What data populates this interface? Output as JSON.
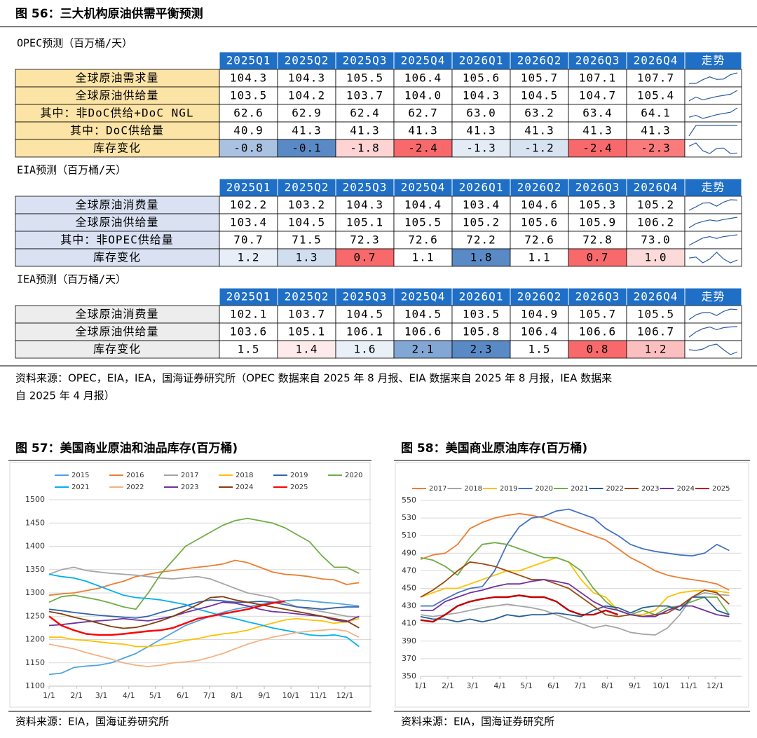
{
  "table": {
    "title": "图 56：三大机构原油供需平衡预测",
    "header_color": "#1f6fc6",
    "trend_color": "#2e5c9e",
    "sections": [
      {
        "title": "OPEC预测（百万桶/天）",
        "label_color": "#fce4a6",
        "columns": [
          "2025Q1",
          "2025Q2",
          "2025Q3",
          "2025Q4",
          "2026Q1",
          "2026Q2",
          "2026Q3",
          "2026Q4",
          "走势"
        ],
        "rows": [
          {
            "label": "全球原油需求量",
            "values": [
              "104.3",
              "104.3",
              "105.5",
              "106.4",
              "105.6",
              "105.7",
              "107.1",
              "107.7"
            ]
          },
          {
            "label": "全球原油供给量",
            "values": [
              "103.5",
              "104.2",
              "103.7",
              "104.0",
              "104.3",
              "104.5",
              "104.7",
              "105.4"
            ]
          },
          {
            "label": "其中：非DoC供给+DoC NGL",
            "values": [
              "62.6",
              "62.9",
              "62.4",
              "62.7",
              "63.0",
              "63.2",
              "63.4",
              "64.1"
            ]
          },
          {
            "label": "其中：DoC供给量",
            "values": [
              "40.9",
              "41.3",
              "41.3",
              "41.3",
              "41.3",
              "41.3",
              "41.3",
              "41.3"
            ]
          },
          {
            "label": "库存变化",
            "values": [
              "-0.8",
              "-0.1",
              "-1.8",
              "-2.4",
              "-1.3",
              "-1.2",
              "-2.4",
              "-2.3"
            ]
          }
        ]
      },
      {
        "title": "EIA预测（百万桶/天）",
        "label_color": "#d9e1f2",
        "columns": [
          "2025Q1",
          "2025Q2",
          "2025Q3",
          "2025Q4",
          "2026Q1",
          "2026Q2",
          "2026Q3",
          "2026Q4",
          "走势"
        ],
        "rows": [
          {
            "label": "全球原油消费量",
            "values": [
              "102.2",
              "103.2",
              "104.3",
              "104.4",
              "103.4",
              "104.6",
              "105.3",
              "105.2"
            ]
          },
          {
            "label": "全球原油供给量",
            "values": [
              "103.4",
              "104.5",
              "105.1",
              "105.5",
              "105.2",
              "105.6",
              "105.9",
              "106.2"
            ]
          },
          {
            "label": "其中：非OPEC供给量",
            "values": [
              "70.7",
              "71.5",
              "72.3",
              "72.6",
              "72.2",
              "72.6",
              "72.8",
              "73.0"
            ]
          },
          {
            "label": "库存变化",
            "values": [
              "1.2",
              "1.3",
              "0.7",
              "1.1",
              "1.8",
              "1.1",
              "0.7",
              "1.0"
            ]
          }
        ]
      },
      {
        "title": "IEA预测（百万桶/天）",
        "label_color": "#ededed",
        "columns": [
          "2025Q1",
          "2025Q2",
          "2025Q3",
          "2025Q4",
          "2026Q1",
          "2026Q2",
          "2026Q3",
          "2026Q4",
          "走势"
        ],
        "rows": [
          {
            "label": "全球原油消费量",
            "values": [
              "102.1",
              "103.7",
              "104.5",
              "104.5",
              "103.5",
              "104.9",
              "105.7",
              "105.5"
            ]
          },
          {
            "label": "全球原油供给量",
            "values": [
              "103.6",
              "105.1",
              "106.1",
              "106.6",
              "105.8",
              "106.4",
              "106.6",
              "106.7"
            ]
          },
          {
            "label": "库存变化",
            "values": [
              "1.5",
              "1.4",
              "1.6",
              "2.1",
              "2.3",
              "1.5",
              "0.8",
              "1.2"
            ]
          }
        ]
      }
    ],
    "source": [
      "资料来源：OPEC，EIA，IEA，国海证券研究所（OPEC 数据来自 2025 年 8 月报、EIA 数据来自 2025 年 8 月报，IEA 数据来",
      "自 2025 年 4 月报）"
    ]
  },
  "chart_data": [
    {
      "type": "line",
      "title": "图 57：美国商业原油和油品库存(百万桶)",
      "source": "资料来源：EIA，国海证券研究所",
      "x": [
        0,
        2,
        4,
        6,
        8,
        10,
        12,
        14,
        16,
        18,
        20,
        22,
        24,
        26,
        28,
        30,
        32,
        34,
        36,
        38,
        40,
        42,
        44,
        46,
        48,
        50
      ],
      "xlim": [
        0,
        52
      ],
      "xticks": [
        {
          "value": 0,
          "label": "1/1"
        },
        {
          "value": 4.43,
          "label": "2/1"
        },
        {
          "value": 8.43,
          "label": "3/1"
        },
        {
          "value": 12.86,
          "label": "4/1"
        },
        {
          "value": 17.14,
          "label": "5/1"
        },
        {
          "value": 21.57,
          "label": "6/1"
        },
        {
          "value": 25.86,
          "label": "7/1"
        },
        {
          "value": 30.29,
          "label": "8/1"
        },
        {
          "value": 34.71,
          "label": "9/1"
        },
        {
          "value": 39,
          "label": "10/1"
        },
        {
          "value": 43.43,
          "label": "11/1"
        },
        {
          "value": 47.71,
          "label": "12/1"
        }
      ],
      "ylim": [
        1100,
        1500
      ],
      "yticks": [
        1100,
        1150,
        1200,
        1250,
        1300,
        1350,
        1400,
        1450,
        1500
      ],
      "grid": true,
      "series": [
        {
          "name": "2015",
          "color": "#4fa3e0",
          "values": [
            1125,
            1128,
            1140,
            1143,
            1145,
            1150,
            1160,
            1170,
            1185,
            1200,
            1215,
            1230,
            1240,
            1250,
            1258,
            1265,
            1270,
            1275,
            1280,
            1283,
            1285,
            1283,
            1280,
            1278,
            1275,
            1272
          ]
        },
        {
          "name": "2016",
          "color": "#ed7d31",
          "values": [
            1295,
            1298,
            1300,
            1305,
            1310,
            1318,
            1325,
            1335,
            1340,
            1345,
            1348,
            1352,
            1355,
            1358,
            1362,
            1370,
            1365,
            1355,
            1345,
            1340,
            1338,
            1335,
            1330,
            1328,
            1318,
            1322
          ]
        },
        {
          "name": "2017",
          "color": "#a5a5a5",
          "values": [
            1340,
            1350,
            1355,
            1348,
            1345,
            1342,
            1340,
            1338,
            1335,
            1332,
            1330,
            1333,
            1335,
            1330,
            1320,
            1310,
            1300,
            1295,
            1290,
            1280,
            1270,
            1265,
            1260,
            1255,
            1250,
            1248
          ]
        },
        {
          "name": "2018",
          "color": "#ffc000",
          "values": [
            1205,
            1205,
            1200,
            1198,
            1195,
            1192,
            1190,
            1185,
            1185,
            1188,
            1192,
            1198,
            1202,
            1208,
            1212,
            1215,
            1220,
            1228,
            1235,
            1242,
            1245,
            1242,
            1240,
            1235,
            1238,
            1245
          ]
        },
        {
          "name": "2019",
          "color": "#3462ab",
          "values": [
            1265,
            1262,
            1258,
            1255,
            1252,
            1250,
            1248,
            1246,
            1250,
            1258,
            1265,
            1272,
            1280,
            1285,
            1283,
            1280,
            1280,
            1282,
            1280,
            1275,
            1270,
            1268,
            1265,
            1268,
            1270,
            1270
          ]
        },
        {
          "name": "2020",
          "color": "#70ad47",
          "values": [
            1280,
            1292,
            1295,
            1290,
            1285,
            1278,
            1270,
            1265,
            1300,
            1340,
            1370,
            1400,
            1415,
            1430,
            1445,
            1455,
            1460,
            1455,
            1450,
            1440,
            1425,
            1410,
            1380,
            1355,
            1355,
            1342
          ]
        },
        {
          "name": "2021",
          "color": "#00b0f0",
          "values": [
            1340,
            1335,
            1332,
            1325,
            1315,
            1305,
            1295,
            1290,
            1288,
            1285,
            1280,
            1275,
            1265,
            1258,
            1250,
            1245,
            1238,
            1232,
            1225,
            1220,
            1215,
            1210,
            1208,
            1210,
            1205,
            1185
          ]
        },
        {
          "name": "2022",
          "color": "#f4b183",
          "values": [
            1190,
            1185,
            1180,
            1172,
            1165,
            1158,
            1150,
            1145,
            1142,
            1145,
            1150,
            1152,
            1155,
            1162,
            1170,
            1180,
            1190,
            1198,
            1205,
            1210,
            1215,
            1218,
            1220,
            1222,
            1218,
            1205
          ]
        },
        {
          "name": "2023",
          "color": "#7030a0",
          "values": [
            1230,
            1232,
            1235,
            1238,
            1240,
            1242,
            1245,
            1242,
            1240,
            1245,
            1250,
            1258,
            1265,
            1272,
            1280,
            1278,
            1272,
            1265,
            1260,
            1258,
            1255,
            1252,
            1250,
            1242,
            1238,
            1250
          ]
        },
        {
          "name": "2024",
          "color": "#843c0c",
          "values": [
            1260,
            1255,
            1248,
            1242,
            1235,
            1228,
            1224,
            1226,
            1232,
            1240,
            1250,
            1262,
            1275,
            1290,
            1292,
            1285,
            1280,
            1275,
            1270,
            1265,
            1260,
            1255,
            1250,
            1245,
            1240,
            1225
          ]
        },
        {
          "name": "2025",
          "color": "#ff0000",
          "values": [
            1250,
            1230,
            1220,
            1212,
            1210,
            1210,
            1212,
            1215,
            1218,
            1220,
            1225,
            1235,
            1245,
            1250,
            1255,
            1260,
            1265,
            1272,
            1278,
            1282,
            null,
            null,
            null,
            null,
            null,
            null
          ]
        }
      ]
    },
    {
      "type": "line",
      "title": "图 58：美国商业原油库存(百万桶)",
      "source": "资料来源：EIA，国海证券研究所",
      "x": [
        0,
        2,
        4,
        6,
        8,
        10,
        12,
        14,
        16,
        18,
        20,
        22,
        24,
        26,
        28,
        30,
        32,
        34,
        36,
        38,
        40,
        42,
        44,
        46,
        48,
        50
      ],
      "xlim": [
        0,
        52
      ],
      "xticks": [
        {
          "value": 0,
          "label": "1/1"
        },
        {
          "value": 4.43,
          "label": "2/1"
        },
        {
          "value": 8.43,
          "label": "3/1"
        },
        {
          "value": 12.86,
          "label": "4/1"
        },
        {
          "value": 17.14,
          "label": "5/1"
        },
        {
          "value": 21.57,
          "label": "6/1"
        },
        {
          "value": 25.86,
          "label": "7/1"
        },
        {
          "value": 30.29,
          "label": "8/1"
        },
        {
          "value": 34.71,
          "label": "9/1"
        },
        {
          "value": 39,
          "label": "10/1"
        },
        {
          "value": 43.43,
          "label": "11/1"
        },
        {
          "value": 47.71,
          "label": "12/1"
        }
      ],
      "ylim": [
        350,
        550
      ],
      "yticks": [
        350,
        370,
        390,
        410,
        430,
        450,
        470,
        490,
        510,
        530,
        550
      ],
      "grid": true,
      "series": [
        {
          "name": "2017",
          "color": "#ed7d31",
          "values": [
            483,
            488,
            490,
            500,
            518,
            525,
            530,
            533,
            535,
            533,
            530,
            525,
            520,
            515,
            510,
            505,
            495,
            485,
            478,
            470,
            465,
            462,
            460,
            458,
            455,
            448
          ]
        },
        {
          "name": "2018",
          "color": "#a5a5a5",
          "values": [
            420,
            418,
            420,
            422,
            425,
            428,
            430,
            432,
            430,
            428,
            425,
            420,
            415,
            410,
            405,
            408,
            405,
            400,
            398,
            397,
            405,
            420,
            440,
            445,
            443,
            442
          ]
        },
        {
          "name": "2019",
          "color": "#ffc000",
          "values": [
            440,
            445,
            450,
            450,
            455,
            460,
            465,
            470,
            470,
            475,
            480,
            485,
            480,
            460,
            445,
            440,
            425,
            420,
            420,
            425,
            440,
            445,
            447,
            448,
            447,
            445
          ]
        },
        {
          "name": "2020",
          "color": "#4472c4",
          "values": [
            430,
            430,
            438,
            445,
            450,
            452,
            470,
            500,
            520,
            530,
            532,
            538,
            540,
            535,
            530,
            518,
            510,
            500,
            495,
            492,
            490,
            488,
            487,
            490,
            500,
            493
          ]
        },
        {
          "name": "2021",
          "color": "#70ad47",
          "values": [
            485,
            482,
            475,
            465,
            485,
            500,
            502,
            500,
            495,
            490,
            485,
            485,
            480,
            470,
            450,
            435,
            425,
            420,
            425,
            420,
            428,
            430,
            435,
            440,
            440,
            420
          ]
        },
        {
          "name": "2022",
          "color": "#255e91",
          "values": [
            418,
            415,
            415,
            412,
            415,
            412,
            415,
            420,
            418,
            420,
            420,
            422,
            420,
            418,
            425,
            430,
            428,
            422,
            428,
            430,
            430,
            425,
            440,
            440,
            425,
            420
          ]
        },
        {
          "name": "2023",
          "color": "#9e480e",
          "values": [
            440,
            448,
            458,
            470,
            480,
            478,
            475,
            470,
            465,
            460,
            460,
            455,
            450,
            440,
            430,
            420,
            418,
            420,
            418,
            420,
            422,
            430,
            440,
            448,
            445,
            432
          ]
        },
        {
          "name": "2024",
          "color": "#7030a0",
          "values": [
            425,
            425,
            435,
            440,
            445,
            448,
            452,
            455,
            455,
            458,
            460,
            458,
            455,
            445,
            435,
            428,
            425,
            420,
            418,
            418,
            425,
            430,
            430,
            425,
            420,
            418
          ]
        },
        {
          "name": "2025",
          "color": "#c00000",
          "values": [
            414,
            412,
            420,
            430,
            435,
            438,
            440,
            440,
            442,
            440,
            440,
            435,
            425,
            420,
            420,
            425,
            420,
            null,
            null,
            null,
            null,
            null,
            null,
            null,
            null,
            null
          ]
        }
      ]
    }
  ]
}
